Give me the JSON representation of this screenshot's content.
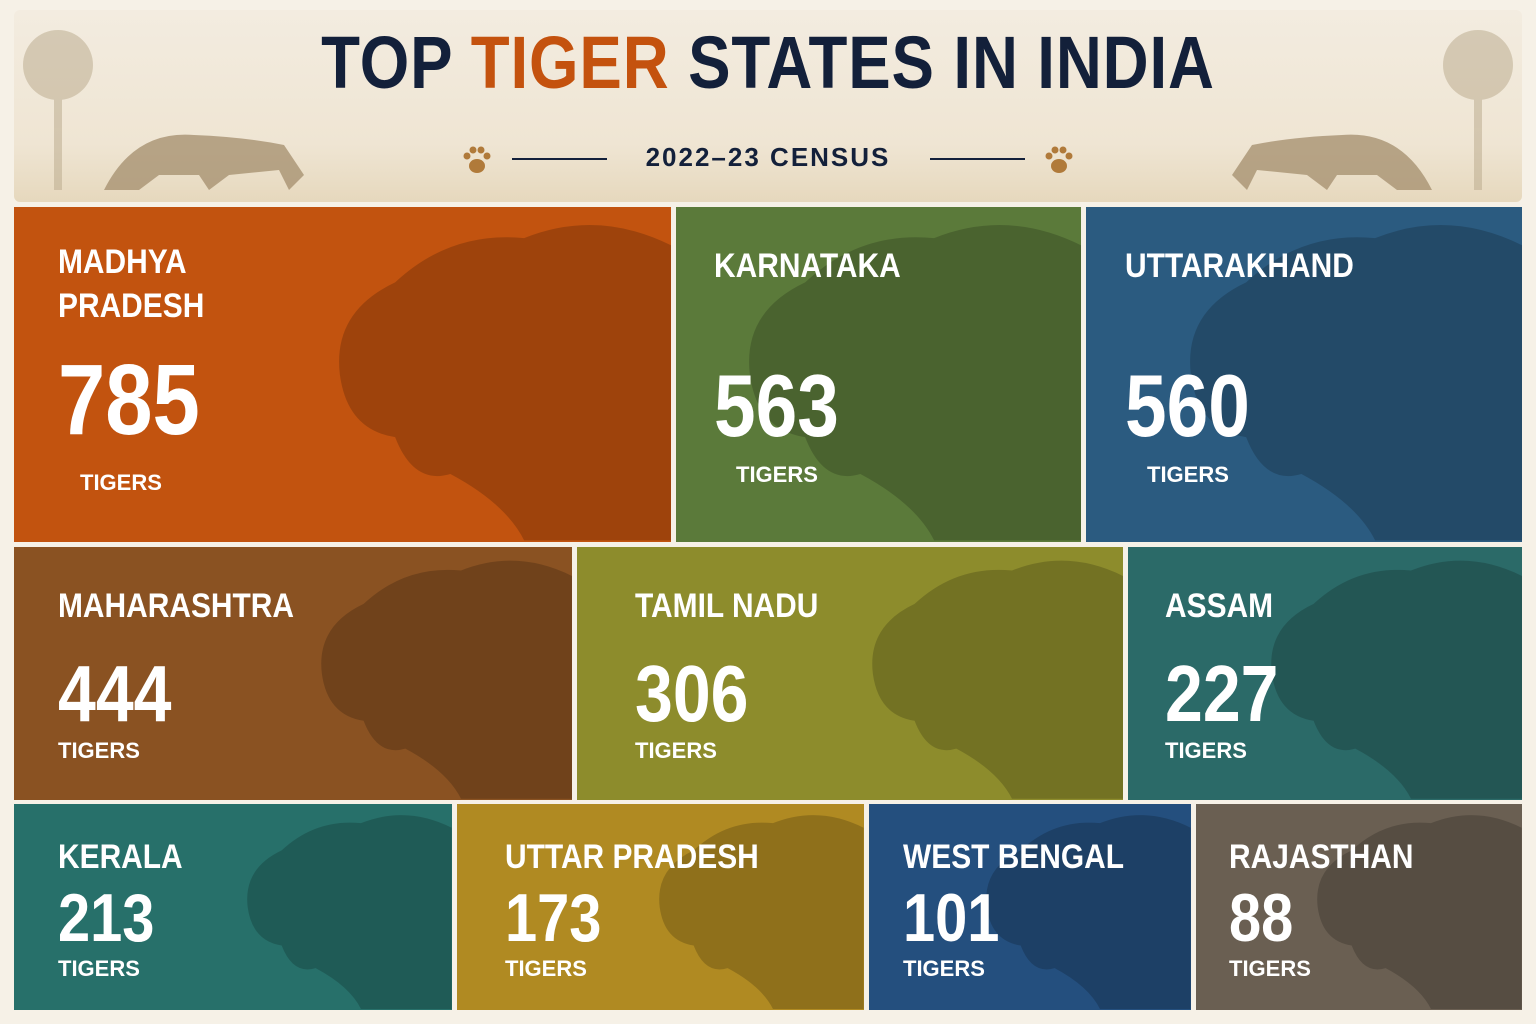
{
  "chart_data": {
    "type": "treemap",
    "title": "TOP TIGER STATES IN INDIA",
    "subtitle": "2022–23 CENSUS",
    "unit_label": "TIGERS",
    "categories": [
      "MADHYA PRADESH",
      "KARNATAKA",
      "UTTARAKHAND",
      "MAHARASHTRA",
      "TAMIL NADU",
      "ASSAM",
      "KERALA",
      "UTTAR PRADESH",
      "WEST BENGAL",
      "RAJASTHAN"
    ],
    "values": [
      785,
      563,
      560,
      444,
      306,
      227,
      213,
      173,
      101,
      88
    ],
    "colors": [
      "#c2530f",
      "#5b7a3a",
      "#2b5b80",
      "#8a5222",
      "#8d8c2c",
      "#2b6a68",
      "#27706a",
      "#b08a22",
      "#244f7e",
      "#6a5f52"
    ]
  }
}
